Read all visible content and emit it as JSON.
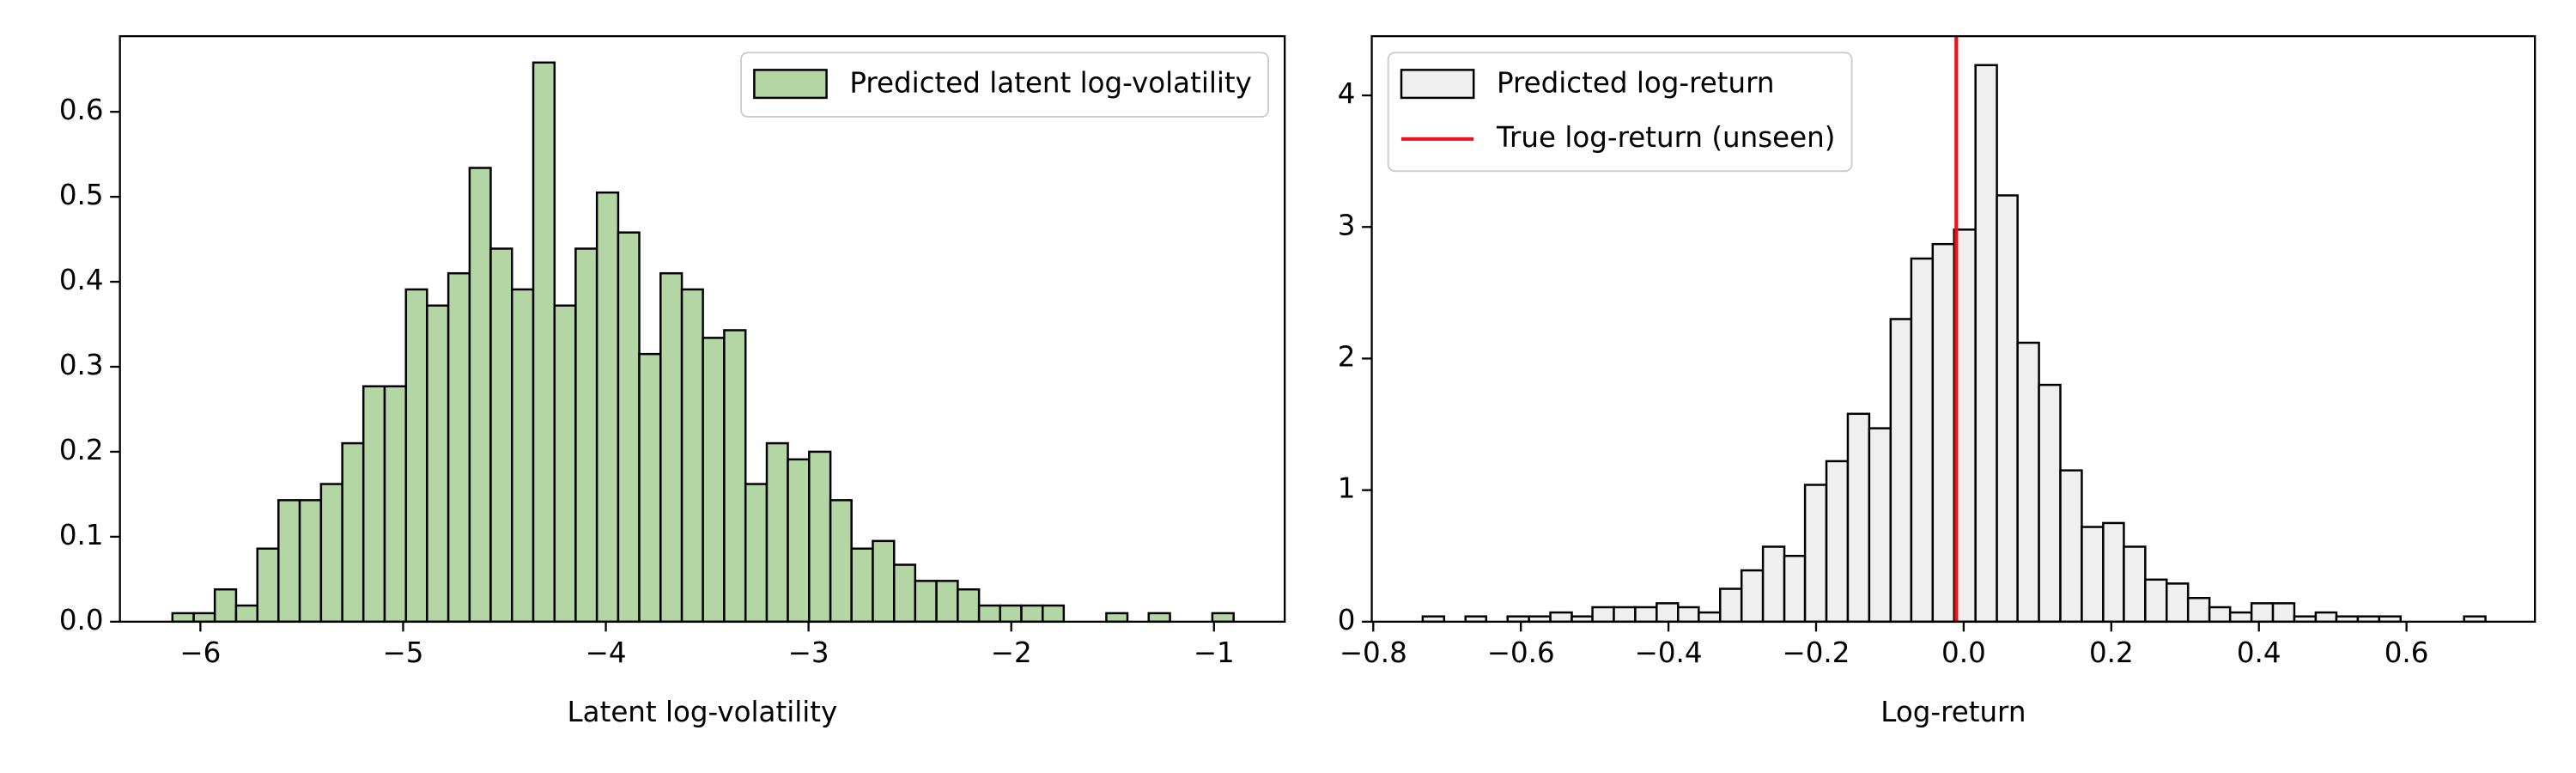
{
  "chart_data": [
    {
      "type": "histogram",
      "x_label": "Latent log-volatility",
      "bins": [
        -6.138,
        -6.033,
        -5.929,
        -5.824,
        -5.719,
        -5.615,
        -5.51,
        -5.405,
        -5.3,
        -5.196,
        -5.091,
        -4.986,
        -4.882,
        -4.777,
        -4.672,
        -4.568,
        -4.463,
        -4.358,
        -4.253,
        -4.149,
        -4.044,
        -3.939,
        -3.835,
        -3.73,
        -3.625,
        -3.521,
        -3.416,
        -3.311,
        -3.206,
        -3.102,
        -2.997,
        -2.892,
        -2.788,
        -2.683,
        -2.578,
        -2.474,
        -2.369,
        -2.264,
        -2.159,
        -2.055,
        -1.95,
        -1.845,
        -1.741,
        -1.636,
        -1.531,
        -1.427,
        -1.322,
        -1.217,
        -1.112,
        -1.008,
        -0.903
      ],
      "series": [
        {
          "name": "Predicted latent log-volatility",
          "color": "#b4d6a4",
          "edgecolor": "#000000",
          "values": [
            0.01,
            0.01,
            0.038,
            0.019,
            0.086,
            0.143,
            0.143,
            0.162,
            0.21,
            0.277,
            0.277,
            0.391,
            0.372,
            0.41,
            0.534,
            0.439,
            0.391,
            0.658,
            0.372,
            0.439,
            0.505,
            0.458,
            0.315,
            0.41,
            0.391,
            0.334,
            0.343,
            0.162,
            0.21,
            0.191,
            0.2,
            0.143,
            0.086,
            0.095,
            0.067,
            0.048,
            0.048,
            0.038,
            0.019,
            0.019,
            0.019,
            0.019,
            0,
            0,
            0.01,
            0,
            0.01,
            0,
            0,
            0.01
          ]
        }
      ],
      "xlim": [
        -6.397,
        -0.651
      ],
      "xticks": [
        {
          "value": -6,
          "label": "−6"
        },
        {
          "value": -5,
          "label": "−5"
        },
        {
          "value": -4,
          "label": "−4"
        },
        {
          "value": -3,
          "label": "−3"
        },
        {
          "value": -2,
          "label": "−2"
        },
        {
          "value": -1,
          "label": "−1"
        }
      ],
      "ylim": [
        0,
        0.689
      ],
      "yticks": [
        {
          "value": 0,
          "label": "0.0"
        },
        0.1,
        0.2,
        0.3,
        0.4,
        0.5,
        0.6
      ],
      "legend": "upper right"
    },
    {
      "type": "histogram",
      "x_label": "Log-return",
      "bins": [
        -0.733,
        -0.704,
        -0.675,
        -0.647,
        -0.618,
        -0.589,
        -0.56,
        -0.531,
        -0.503,
        -0.474,
        -0.445,
        -0.416,
        -0.387,
        -0.359,
        -0.33,
        -0.301,
        -0.272,
        -0.243,
        -0.215,
        -0.186,
        -0.157,
        -0.128,
        -0.099,
        -0.071,
        -0.042,
        -0.013,
        0.016,
        0.045,
        0.073,
        0.102,
        0.131,
        0.16,
        0.189,
        0.217,
        0.246,
        0.275,
        0.304,
        0.333,
        0.361,
        0.39,
        0.419,
        0.448,
        0.477,
        0.505,
        0.534,
        0.563,
        0.592,
        0.621,
        0.649,
        0.678,
        0.707
      ],
      "series": [
        {
          "name": "Predicted log-return",
          "color": "#efefef",
          "edgecolor": "#000000",
          "values": [
            0.04,
            0,
            0.04,
            0,
            0.04,
            0.04,
            0.07,
            0.04,
            0.11,
            0.11,
            0.11,
            0.14,
            0.11,
            0.07,
            0.25,
            0.39,
            0.57,
            0.5,
            1.04,
            1.22,
            1.58,
            1.47,
            2.3,
            2.76,
            2.87,
            2.98,
            4.23,
            3.24,
            2.12,
            1.8,
            1.15,
            0.72,
            0.75,
            0.57,
            0.32,
            0.29,
            0.18,
            0.11,
            0.07,
            0.14,
            0.14,
            0.04,
            0.07,
            0.04,
            0.04,
            0.04,
            0,
            0,
            0,
            0.04
          ]
        }
      ],
      "vlines": [
        {
          "name": "True log-return (unseen)",
          "x": -0.01,
          "color": "#e8141a"
        }
      ],
      "xlim": [
        -0.802,
        0.774
      ],
      "xticks": [
        {
          "value": -0.8,
          "label": "−0.8"
        },
        {
          "value": -0.6,
          "label": "−0.6"
        },
        {
          "value": -0.4,
          "label": "−0.4"
        },
        {
          "value": -0.2,
          "label": "−0.2"
        },
        {
          "value": 0,
          "label": "0.0"
        },
        0.2,
        0.4,
        0.6
      ],
      "ylim": [
        0,
        4.45
      ],
      "yticks": [
        0,
        1,
        2,
        3,
        4
      ],
      "legend": "upper left"
    }
  ]
}
